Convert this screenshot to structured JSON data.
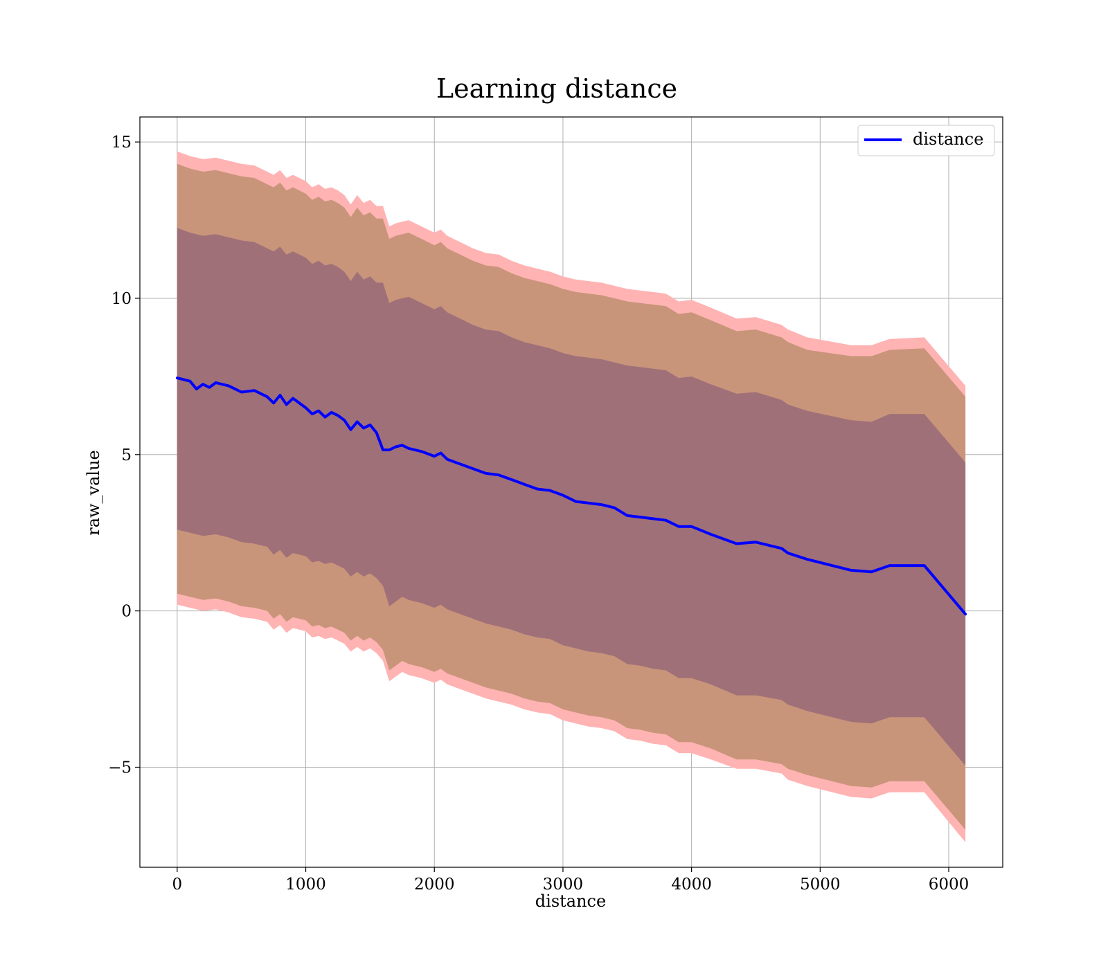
{
  "chart_data": {
    "type": "area",
    "title": "Learning distance",
    "xlabel": "distance",
    "ylabel": "raw_value",
    "xlim": [
      -290,
      6420
    ],
    "ylim": [
      -8.2,
      15.8
    ],
    "xticks": [
      0,
      1000,
      2000,
      3000,
      4000,
      5000,
      6000
    ],
    "xtick_labels": [
      "0",
      "1000",
      "2000",
      "3000",
      "4000",
      "5000",
      "6000"
    ],
    "yticks": [
      -5,
      0,
      5,
      10,
      15
    ],
    "ytick_labels": [
      "−5",
      "0",
      "5",
      "10",
      "15"
    ],
    "grid": true,
    "legend": {
      "placement": "top-right",
      "entries": [
        "distance"
      ]
    },
    "colors": {
      "line": "#0000ff",
      "band_outer": "#ffb3b3",
      "band_middle": "#c9957a",
      "band_inner": "#a07079"
    },
    "series": [
      {
        "name": "distance",
        "x": [
          0,
          100,
          150,
          200,
          250,
          300,
          400,
          500,
          600,
          700,
          750,
          800,
          850,
          900,
          1000,
          1050,
          1100,
          1150,
          1200,
          1250,
          1300,
          1350,
          1400,
          1450,
          1500,
          1550,
          1600,
          1650,
          1700,
          1750,
          1800,
          1900,
          2000,
          2050,
          2100,
          2200,
          2300,
          2400,
          2500,
          2600,
          2700,
          2800,
          2900,
          3000,
          3100,
          3200,
          3300,
          3400,
          3500,
          3600,
          3700,
          3800,
          3900,
          4000,
          4150,
          4350,
          4500,
          4700,
          4750,
          4900,
          5240,
          5400,
          5540,
          5810,
          6130
        ],
        "y": [
          7.45,
          7.35,
          7.1,
          7.25,
          7.15,
          7.3,
          7.2,
          7.0,
          7.05,
          6.85,
          6.65,
          6.9,
          6.6,
          6.8,
          6.5,
          6.3,
          6.4,
          6.2,
          6.35,
          6.25,
          6.1,
          5.8,
          6.05,
          5.85,
          5.95,
          5.7,
          5.15,
          5.15,
          5.25,
          5.3,
          5.2,
          5.1,
          4.95,
          5.05,
          4.85,
          4.7,
          4.55,
          4.4,
          4.35,
          4.2,
          4.05,
          3.9,
          3.85,
          3.7,
          3.5,
          3.45,
          3.4,
          3.3,
          3.05,
          3.0,
          2.95,
          2.9,
          2.7,
          2.7,
          2.45,
          2.15,
          2.2,
          2.0,
          1.85,
          1.65,
          1.3,
          1.25,
          1.45,
          1.45,
          -0.1
        ]
      }
    ],
    "bands": [
      {
        "level": "outer",
        "x": [
          0,
          100,
          200,
          300,
          400,
          500,
          600,
          700,
          750,
          800,
          850,
          900,
          1000,
          1050,
          1100,
          1150,
          1200,
          1250,
          1300,
          1350,
          1400,
          1450,
          1500,
          1550,
          1600,
          1650,
          1700,
          1750,
          1800,
          1900,
          2000,
          2050,
          2100,
          2200,
          2300,
          2400,
          2500,
          2600,
          2700,
          2800,
          2900,
          3000,
          3100,
          3200,
          3300,
          3400,
          3500,
          3600,
          3700,
          3800,
          3900,
          4000,
          4150,
          4350,
          4500,
          4700,
          4750,
          4900,
          5240,
          5400,
          5540,
          5810,
          6130
        ],
        "upper": [
          14.7,
          14.55,
          14.45,
          14.5,
          14.4,
          14.3,
          14.25,
          14.05,
          13.95,
          14.1,
          13.85,
          13.95,
          13.75,
          13.55,
          13.65,
          13.5,
          13.55,
          13.45,
          13.3,
          13.0,
          13.3,
          13.05,
          13.15,
          12.95,
          12.95,
          12.3,
          12.4,
          12.45,
          12.5,
          12.3,
          12.1,
          12.2,
          12.0,
          11.8,
          11.6,
          11.45,
          11.4,
          11.2,
          11.05,
          10.95,
          10.85,
          10.7,
          10.6,
          10.55,
          10.5,
          10.4,
          10.3,
          10.25,
          10.2,
          10.15,
          9.9,
          9.95,
          9.7,
          9.35,
          9.4,
          9.15,
          9.0,
          8.75,
          8.5,
          8.5,
          8.7,
          8.75,
          7.2
        ],
        "lower": [
          0.2,
          0.1,
          0.0,
          0.05,
          -0.05,
          -0.2,
          -0.25,
          -0.35,
          -0.6,
          -0.45,
          -0.7,
          -0.55,
          -0.65,
          -0.85,
          -0.8,
          -0.9,
          -0.85,
          -0.95,
          -1.05,
          -1.3,
          -1.15,
          -1.3,
          -1.2,
          -1.35,
          -1.6,
          -2.25,
          -2.1,
          -1.95,
          -2.05,
          -2.15,
          -2.3,
          -2.2,
          -2.35,
          -2.5,
          -2.65,
          -2.8,
          -2.9,
          -3.0,
          -3.15,
          -3.25,
          -3.3,
          -3.5,
          -3.6,
          -3.7,
          -3.75,
          -3.85,
          -4.1,
          -4.15,
          -4.25,
          -4.3,
          -4.55,
          -4.55,
          -4.75,
          -5.05,
          -5.05,
          -5.2,
          -5.4,
          -5.6,
          -5.95,
          -6.0,
          -5.8,
          -5.8,
          -7.4
        ]
      },
      {
        "level": "middle",
        "x": [
          0,
          100,
          200,
          300,
          400,
          500,
          600,
          700,
          750,
          800,
          850,
          900,
          1000,
          1050,
          1100,
          1150,
          1200,
          1250,
          1300,
          1350,
          1400,
          1450,
          1500,
          1550,
          1600,
          1650,
          1700,
          1750,
          1800,
          1900,
          2000,
          2050,
          2100,
          2200,
          2300,
          2400,
          2500,
          2600,
          2700,
          2800,
          2900,
          3000,
          3100,
          3200,
          3300,
          3400,
          3500,
          3600,
          3700,
          3800,
          3900,
          4000,
          4150,
          4350,
          4500,
          4700,
          4750,
          4900,
          5240,
          5400,
          5540,
          5810,
          6130
        ],
        "upper": [
          14.3,
          14.15,
          14.05,
          14.1,
          14.0,
          13.9,
          13.85,
          13.65,
          13.55,
          13.7,
          13.45,
          13.55,
          13.35,
          13.15,
          13.25,
          13.1,
          13.15,
          13.05,
          12.9,
          12.6,
          12.9,
          12.65,
          12.75,
          12.55,
          12.55,
          11.9,
          12.0,
          12.05,
          12.1,
          11.9,
          11.7,
          11.8,
          11.6,
          11.4,
          11.2,
          11.05,
          11.0,
          10.8,
          10.65,
          10.55,
          10.45,
          10.3,
          10.2,
          10.15,
          10.1,
          10.0,
          9.9,
          9.85,
          9.8,
          9.75,
          9.5,
          9.55,
          9.3,
          8.95,
          9.0,
          8.75,
          8.6,
          8.35,
          8.15,
          8.15,
          8.35,
          8.4,
          6.85
        ],
        "lower": [
          0.55,
          0.45,
          0.35,
          0.4,
          0.3,
          0.15,
          0.1,
          0.0,
          -0.25,
          -0.1,
          -0.35,
          -0.2,
          -0.3,
          -0.5,
          -0.45,
          -0.55,
          -0.5,
          -0.6,
          -0.7,
          -0.95,
          -0.8,
          -0.95,
          -0.85,
          -1.0,
          -1.25,
          -1.9,
          -1.75,
          -1.6,
          -1.7,
          -1.8,
          -1.95,
          -1.85,
          -2.0,
          -2.15,
          -2.3,
          -2.45,
          -2.55,
          -2.65,
          -2.8,
          -2.9,
          -2.95,
          -3.15,
          -3.25,
          -3.35,
          -3.4,
          -3.5,
          -3.75,
          -3.8,
          -3.9,
          -3.95,
          -4.2,
          -4.2,
          -4.4,
          -4.75,
          -4.75,
          -4.9,
          -5.05,
          -5.25,
          -5.6,
          -5.65,
          -5.45,
          -5.45,
          -7.0
        ]
      },
      {
        "level": "inner",
        "x": [
          0,
          100,
          200,
          300,
          400,
          500,
          600,
          700,
          750,
          800,
          850,
          900,
          1000,
          1050,
          1100,
          1150,
          1200,
          1250,
          1300,
          1350,
          1400,
          1450,
          1500,
          1550,
          1600,
          1650,
          1700,
          1750,
          1800,
          1900,
          2000,
          2050,
          2100,
          2200,
          2300,
          2400,
          2500,
          2600,
          2700,
          2800,
          2900,
          3000,
          3100,
          3200,
          3300,
          3400,
          3500,
          3600,
          3700,
          3800,
          3900,
          4000,
          4150,
          4350,
          4500,
          4700,
          4750,
          4900,
          5240,
          5400,
          5540,
          5810,
          6130
        ],
        "upper": [
          12.25,
          12.1,
          12.0,
          12.05,
          11.95,
          11.85,
          11.8,
          11.6,
          11.5,
          11.65,
          11.4,
          11.5,
          11.3,
          11.1,
          11.2,
          11.05,
          11.1,
          11.0,
          10.85,
          10.55,
          10.85,
          10.6,
          10.7,
          10.5,
          10.5,
          9.85,
          9.95,
          10.0,
          10.05,
          9.85,
          9.65,
          9.75,
          9.55,
          9.35,
          9.15,
          9.0,
          8.95,
          8.75,
          8.6,
          8.5,
          8.4,
          8.25,
          8.15,
          8.1,
          8.05,
          7.95,
          7.85,
          7.8,
          7.75,
          7.7,
          7.45,
          7.5,
          7.25,
          6.95,
          7.0,
          6.75,
          6.6,
          6.4,
          6.1,
          6.05,
          6.3,
          6.3,
          4.75
        ],
        "lower": [
          2.6,
          2.5,
          2.4,
          2.45,
          2.35,
          2.2,
          2.15,
          2.05,
          1.8,
          1.95,
          1.7,
          1.85,
          1.75,
          1.55,
          1.6,
          1.5,
          1.55,
          1.45,
          1.35,
          1.1,
          1.25,
          1.1,
          1.2,
          1.05,
          0.8,
          0.15,
          0.3,
          0.45,
          0.35,
          0.25,
          0.1,
          0.2,
          0.05,
          -0.1,
          -0.25,
          -0.4,
          -0.5,
          -0.6,
          -0.75,
          -0.85,
          -0.9,
          -1.1,
          -1.2,
          -1.3,
          -1.35,
          -1.45,
          -1.7,
          -1.75,
          -1.85,
          -1.9,
          -2.15,
          -2.15,
          -2.35,
          -2.7,
          -2.7,
          -2.85,
          -3.0,
          -3.2,
          -3.55,
          -3.6,
          -3.4,
          -3.4,
          -4.95
        ]
      }
    ]
  }
}
